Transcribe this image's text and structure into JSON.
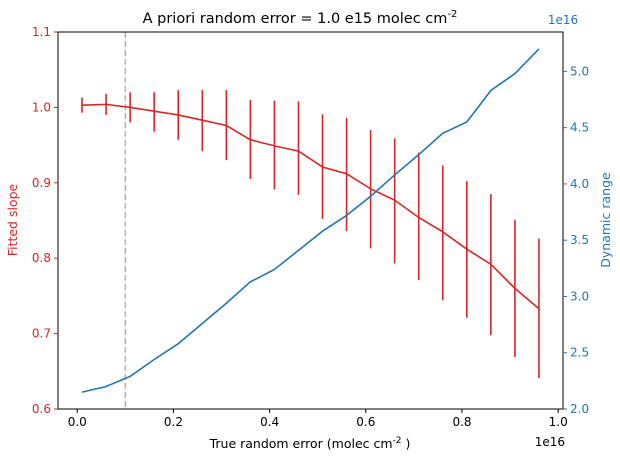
{
  "chart_data": {
    "type": "line",
    "title": "A priori random error = 1.0 e15 molec cm",
    "title_superscript": "-2",
    "xlabel": "True random error (molec cm",
    "xlabel_superscript": "-2",
    "xlabel_suffix": " )",
    "x_offset_text": "1e16",
    "ylabel_left": "Fitted slope",
    "ylabel_right": "Dynamic range",
    "right_offset_text": "1e16",
    "xlim": [
      -0.04,
      1.01
    ],
    "ylim_left": [
      0.6,
      1.1
    ],
    "ylim_right": [
      2.0,
      5.35
    ],
    "x_ticks": [
      0.0,
      0.2,
      0.4,
      0.6,
      0.8,
      1.0
    ],
    "x_tick_labels": [
      "0.0",
      "0.2",
      "0.4",
      "0.6",
      "0.8",
      "1.0"
    ],
    "left_ticks": [
      0.6,
      0.7,
      0.8,
      0.9,
      1.0,
      1.1
    ],
    "left_tick_labels": [
      "0.6",
      "0.7",
      "0.8",
      "0.9",
      "1.0",
      "1.1"
    ],
    "right_ticks": [
      2.0,
      2.5,
      3.0,
      3.5,
      4.0,
      4.5,
      5.0
    ],
    "right_tick_labels": [
      "2.0",
      "2.5",
      "3.0",
      "3.5",
      "4.0",
      "4.5",
      "5.0"
    ],
    "vline_x": 0.1,
    "x": [
      0.01,
      0.06,
      0.11,
      0.16,
      0.21,
      0.26,
      0.31,
      0.36,
      0.41,
      0.46,
      0.51,
      0.56,
      0.61,
      0.66,
      0.71,
      0.76,
      0.81,
      0.86,
      0.91,
      0.96
    ],
    "series": [
      {
        "axis": "left",
        "color": "#d62728",
        "values": [
          1.003,
          1.004,
          1.0,
          0.995,
          0.99,
          0.983,
          0.976,
          0.957,
          0.949,
          0.942,
          0.921,
          0.912,
          0.892,
          0.877,
          0.854,
          0.835,
          0.812,
          0.792,
          0.76,
          0.733
        ],
        "err_low": [
          0.993,
          0.99,
          0.98,
          0.968,
          0.957,
          0.942,
          0.93,
          0.905,
          0.891,
          0.884,
          0.852,
          0.836,
          0.813,
          0.793,
          0.771,
          0.744,
          0.721,
          0.698,
          0.669,
          0.641
        ],
        "err_high": [
          1.013,
          1.018,
          1.02,
          1.02,
          1.023,
          1.023,
          1.023,
          1.01,
          1.009,
          1.008,
          0.991,
          0.986,
          0.97,
          0.959,
          0.94,
          0.923,
          0.902,
          0.885,
          0.851,
          0.826
        ]
      },
      {
        "axis": "right",
        "color": "#1f77b4",
        "values": [
          2.15,
          2.2,
          2.29,
          2.44,
          2.58,
          2.76,
          2.94,
          3.13,
          3.24,
          3.41,
          3.58,
          3.72,
          3.89,
          4.08,
          4.26,
          4.45,
          4.55,
          4.83,
          4.98,
          5.2
        ]
      }
    ],
    "colors": {
      "left_axis": "#d62728",
      "right_axis": "#1f77b4",
      "vline": "#b0b0b0",
      "frame": "#000000"
    }
  }
}
